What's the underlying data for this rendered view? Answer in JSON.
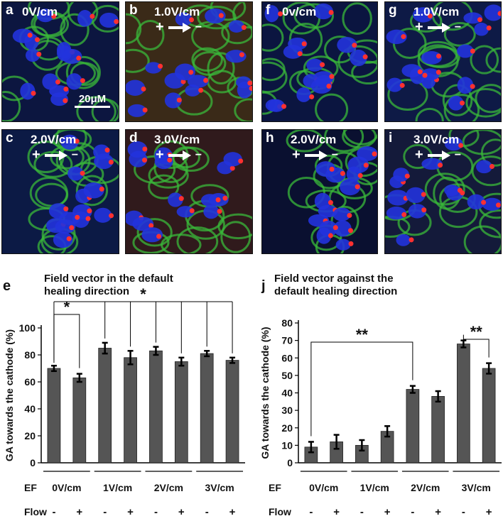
{
  "micrographs": {
    "left": [
      {
        "letter": "a",
        "field": "0V/cm",
        "arrow": false,
        "scale": "20μM"
      },
      {
        "letter": "b",
        "field": "1.0V/cm",
        "arrow": true
      },
      {
        "letter": "c",
        "field": "2.0V/cm",
        "arrow": true
      },
      {
        "letter": "d",
        "field": "3.0V/cm",
        "arrow": true
      }
    ],
    "right": [
      {
        "letter": "f",
        "field": "0v/cm",
        "arrow": false
      },
      {
        "letter": "g",
        "field": "1.0V/cm",
        "arrow": true
      },
      {
        "letter": "h",
        "field": "2.0V/cm",
        "arrow": true
      },
      {
        "letter": "i",
        "field": "3.0V/cm",
        "arrow": true
      }
    ],
    "plus": "+",
    "minus": "−",
    "colors": {
      "nucleus": "#2233dd",
      "actin": "#3ab83a",
      "golgi": "#ff3030"
    }
  },
  "chart_data": [
    {
      "type": "bar",
      "letter": "e",
      "title": "Field vector in the default healing direction",
      "title_lines": [
        "Field vector in the default",
        "healing direction"
      ],
      "ylabel": "GA towards the cathode (%)",
      "ylim": [
        0,
        100
      ],
      "yticks": [
        0,
        20,
        40,
        60,
        80,
        100
      ],
      "values": [
        70,
        63,
        85,
        78,
        83,
        75,
        81,
        76
      ],
      "errors": [
        2,
        3,
        4,
        5,
        3,
        3,
        2,
        2
      ],
      "flow": [
        "-",
        "+",
        "-",
        "+",
        "-",
        "+",
        "-",
        "+"
      ],
      "ef_groups": [
        "0V/cm",
        "1V/cm",
        "2V/cm",
        "3V/cm"
      ],
      "ef_label": "EF",
      "flow_label": "Flow",
      "significance": [
        {
          "type": "pair",
          "from": 0,
          "to": 1,
          "label": "*"
        },
        {
          "type": "multi",
          "from": 0,
          "to": [
            2,
            3,
            4,
            5,
            6,
            7
          ],
          "label": "*"
        }
      ],
      "bar_color": "#555555"
    },
    {
      "type": "bar",
      "letter": "j",
      "title": "Field vector against the default healing direction",
      "title_lines": [
        "Field vector against the",
        "default  healing direction"
      ],
      "ylabel": "GA  towards the cathode (%)",
      "ylim": [
        0,
        80
      ],
      "yticks": [
        0,
        10,
        20,
        30,
        40,
        50,
        60,
        70,
        80
      ],
      "values": [
        9,
        12,
        10,
        18,
        42,
        38,
        68,
        54
      ],
      "errors": [
        3,
        4,
        3,
        3,
        2,
        3,
        2,
        3
      ],
      "flow": [
        "-",
        "+",
        "-",
        "+",
        "-",
        "+",
        "-",
        "+"
      ],
      "ef_groups": [
        "0V/cm",
        "1V/cm",
        "2V/cm",
        "3V/cm"
      ],
      "ef_label": "EF",
      "flow_label": "Flow",
      "significance": [
        {
          "type": "pair",
          "from": 0,
          "to": 4,
          "label": "**"
        },
        {
          "type": "pair",
          "from": 6,
          "to": 7,
          "label": "**"
        }
      ],
      "bar_color": "#555555"
    }
  ]
}
